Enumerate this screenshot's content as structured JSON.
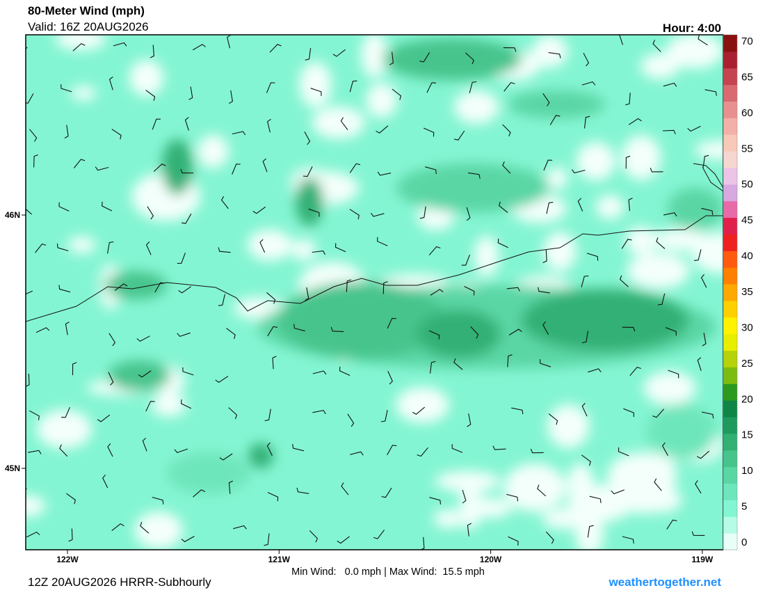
{
  "header": {
    "title": "80-Meter Wind (mph)",
    "valid": "Valid: 16Z 20AUG2026",
    "hour": "Hour: 4:00"
  },
  "map": {
    "lon_ticks": [
      {
        "value": -122,
        "label": "122W"
      },
      {
        "value": -121,
        "label": "121W"
      },
      {
        "value": -120,
        "label": "120W"
      },
      {
        "value": -119,
        "label": "119W"
      }
    ],
    "lat_ticks": [
      {
        "value": 46,
        "label": "46N"
      },
      {
        "value": 45,
        "label": "45N"
      }
    ]
  },
  "colorbar": {
    "ticks": [
      0,
      5,
      10,
      15,
      20,
      25,
      30,
      35,
      40,
      45,
      50,
      55,
      60,
      65,
      70
    ],
    "colors": [
      "#e8fff7",
      "#b6fbe5",
      "#84f5d2",
      "#6ee6bb",
      "#5ad6a4",
      "#46c48c",
      "#32b074",
      "#1e9a5c",
      "#0f8646",
      "#2c9a1e",
      "#7cbc10",
      "#b6d20a",
      "#e8ee00",
      "#fff200",
      "#ffd000",
      "#ffa800",
      "#ff8000",
      "#ff5a10",
      "#ee2020",
      "#e0204a",
      "#e86aa8",
      "#d8a8e0",
      "#ecc4e8",
      "#f6d6d0",
      "#f8c8b8",
      "#f2b0a8",
      "#e89090",
      "#d86a70",
      "#c44450",
      "#aa2030",
      "#8a1010"
    ]
  },
  "footer": {
    "run": "12Z 20AUG2026 HRRR-Subhourly",
    "stats": "Min Wind:   0.0 mph | Max Wind:  15.5 mph",
    "site": "weathertogether.net"
  }
}
